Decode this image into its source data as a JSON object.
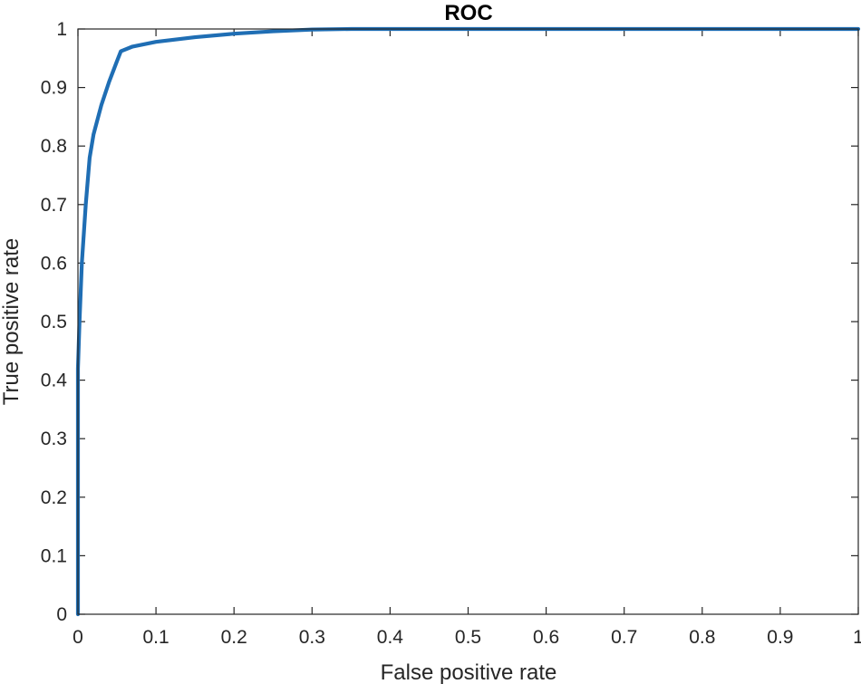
{
  "chart_data": {
    "type": "line",
    "title": "ROC",
    "xlabel": "False positive rate",
    "ylabel": "True positive rate",
    "xlim": [
      0,
      1
    ],
    "ylim": [
      0,
      1
    ],
    "xticks": [
      "0",
      "0.1",
      "0.2",
      "0.3",
      "0.4",
      "0.5",
      "0.6",
      "0.7",
      "0.8",
      "0.9",
      "1"
    ],
    "yticks": [
      "0",
      "0.1",
      "0.2",
      "0.3",
      "0.4",
      "0.5",
      "0.6",
      "0.7",
      "0.8",
      "0.9",
      "1"
    ],
    "grid": false,
    "series": [
      {
        "color": "#1f6eb4",
        "x": [
          0,
          0,
          0.002,
          0.005,
          0.01,
          0.015,
          0.02,
          0.03,
          0.04,
          0.05,
          0.055,
          0.07,
          0.1,
          0.15,
          0.2,
          0.25,
          0.3,
          0.35,
          0.4,
          0.5,
          0.6,
          0.7,
          0.8,
          0.9,
          1
        ],
        "y": [
          0,
          0.42,
          0.5,
          0.6,
          0.7,
          0.78,
          0.82,
          0.87,
          0.91,
          0.945,
          0.962,
          0.97,
          0.978,
          0.986,
          0.992,
          0.996,
          0.999,
          1,
          1,
          1,
          1,
          1,
          1,
          1,
          1
        ]
      }
    ]
  }
}
